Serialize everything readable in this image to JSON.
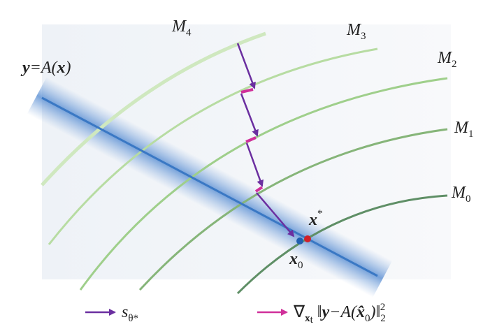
{
  "manifolds": [
    {
      "name": "M",
      "index": "4"
    },
    {
      "name": "M",
      "index": "3"
    },
    {
      "name": "M",
      "index": "2"
    },
    {
      "name": "M",
      "index": "1"
    },
    {
      "name": "M",
      "index": "0"
    }
  ],
  "constraint": [
    "y",
    "=A(",
    "x",
    ")"
  ],
  "x_star": [
    "x",
    "*"
  ],
  "x_zero": [
    "x",
    "0"
  ],
  "legend": {
    "score": [
      "s",
      "θ*"
    ],
    "gradient": [
      "∇",
      "x",
      "t",
      "‖",
      "y",
      "−A(",
      "x̂",
      "0",
      ")‖",
      "2",
      "2"
    ]
  }
}
